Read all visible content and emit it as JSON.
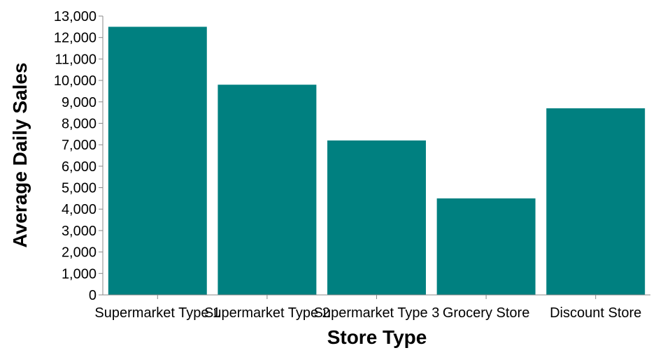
{
  "chart_data": {
    "type": "bar",
    "categories": [
      "Supermarket Type 1",
      "Supermarket Type 2",
      "Supermarket Type 3",
      "Grocery Store",
      "Discount Store"
    ],
    "values": [
      12500,
      9800,
      7200,
      4500,
      8700
    ],
    "xlabel": "Store Type",
    "ylabel": "Average Daily Sales",
    "ylim": [
      0,
      13000
    ],
    "yticks": [
      0,
      1000,
      2000,
      3000,
      4000,
      5000,
      6000,
      7000,
      8000,
      9000,
      10000,
      11000,
      12000,
      13000
    ],
    "grid": false,
    "bar_color": "#008080"
  }
}
